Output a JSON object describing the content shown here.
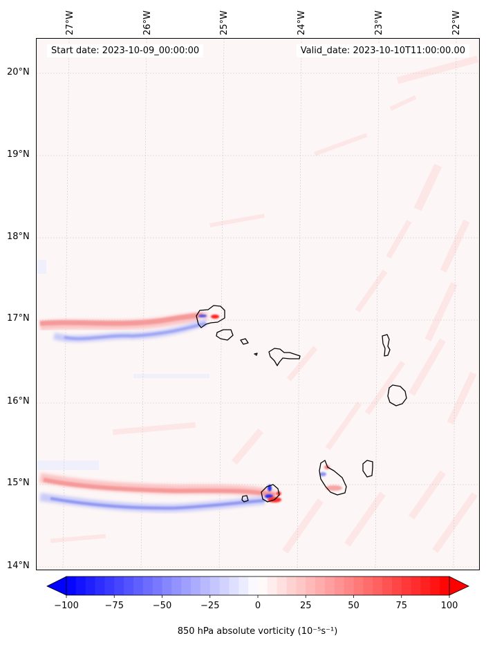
{
  "map": {
    "variable": "850 hPa absolute vorticity",
    "units_note": "(10⁻⁵s⁻¹)",
    "start_date_text": "Start date: 2023-10-09_00:00:00",
    "valid_date_text": "Valid_date: 2023-10-10T11:00:00.00",
    "longitude_labels": [
      "27°W",
      "26°W",
      "25°W",
      "24°W",
      "23°W",
      "22°W"
    ],
    "longitude_values": [
      -27,
      -26,
      -25,
      -24,
      -23,
      -22
    ],
    "latitude_labels": [
      "20°N",
      "19°N",
      "18°N",
      "17°N",
      "16°N",
      "15°N",
      "14°N"
    ],
    "latitude_values": [
      20,
      19,
      18,
      17,
      16,
      15,
      14
    ],
    "extent": {
      "lon_min": -27.35,
      "lon_max": -21.75,
      "lat_min": 13.95,
      "lat_max": 20.4
    },
    "islands": [
      "Santo Antão",
      "São Vicente",
      "Santa Luzia",
      "São Nicolau",
      "Sal",
      "Boa Vista",
      "Maio",
      "Santiago",
      "Fogo",
      "Brava"
    ],
    "features": [
      {
        "name": "northern-vorticity-wake",
        "description": "dipole streak extending west of Santo Antão along ~16.9°N"
      },
      {
        "name": "southern-vorticity-wake",
        "description": "dipole streak extending west of Fogo/Brava along ~14.8°N"
      }
    ]
  },
  "colorbar": {
    "title": "850 hPa absolute vorticity (10⁻⁵s⁻¹)",
    "min": -100,
    "max": 100,
    "ticks": [
      -100,
      -75,
      -50,
      -25,
      0,
      25,
      50,
      75,
      100
    ],
    "tick_labels": [
      "−100",
      "−75",
      "−50",
      "−25",
      "0",
      "25",
      "50",
      "75",
      "100"
    ],
    "extend": "both",
    "cmap": "bwr",
    "neg_color": "#0000ff",
    "mid_color": "#ffffff",
    "pos_color": "#ff0000"
  }
}
